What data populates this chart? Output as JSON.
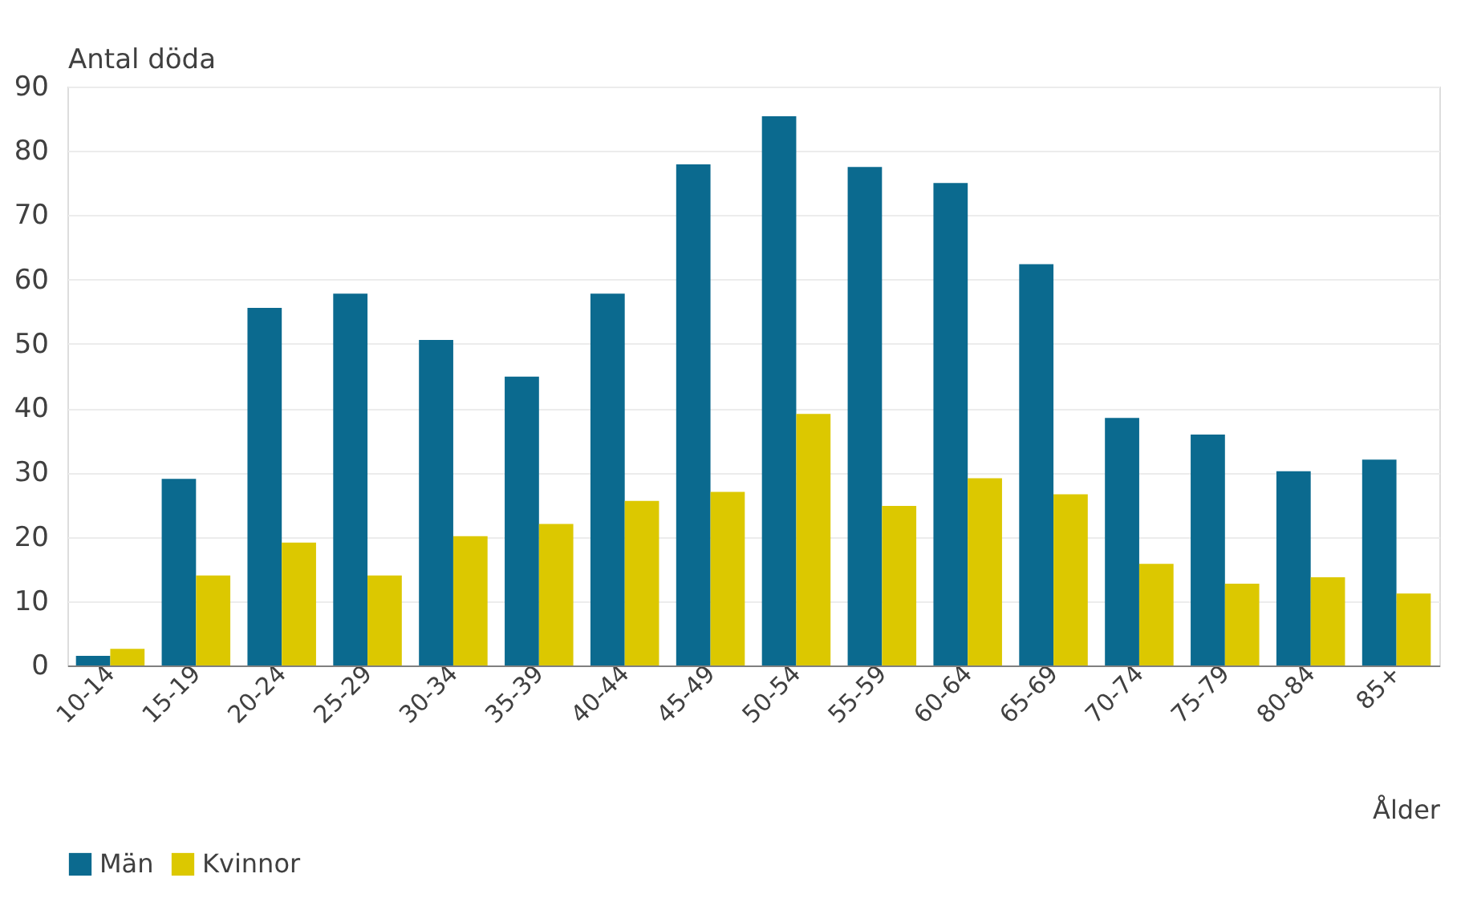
{
  "chart_data": {
    "type": "bar",
    "ylabel": "Antal döda",
    "xlabel": "Ålder",
    "categories": [
      "10-14",
      "15-19",
      "20-24",
      "25-29",
      "30-34",
      "35-39",
      "40-44",
      "45-49",
      "50-54",
      "55-59",
      "60-64",
      "65-69",
      "70-74",
      "75-79",
      "80-84",
      "85+"
    ],
    "series": [
      {
        "name": "Män",
        "color": "#0b6a8f",
        "values": [
          1.5,
          29,
          55.6,
          57.8,
          50.6,
          44.9,
          57.8,
          77.9,
          85.4,
          77.5,
          75.0,
          62.4,
          38.5,
          35.9,
          30.2,
          32.0
        ]
      },
      {
        "name": "Kvinnor",
        "color": "#dcc800",
        "values": [
          2.6,
          14.0,
          19.1,
          14.0,
          20.1,
          22.0,
          25.6,
          27.0,
          39.1,
          24.8,
          29.1,
          26.6,
          15.8,
          12.7,
          13.7,
          11.2
        ]
      }
    ],
    "ylim": [
      0,
      90
    ],
    "yticks": [
      0,
      10,
      20,
      30,
      40,
      50,
      60,
      70,
      80,
      90
    ],
    "grid": "y",
    "legend": "bottom"
  }
}
